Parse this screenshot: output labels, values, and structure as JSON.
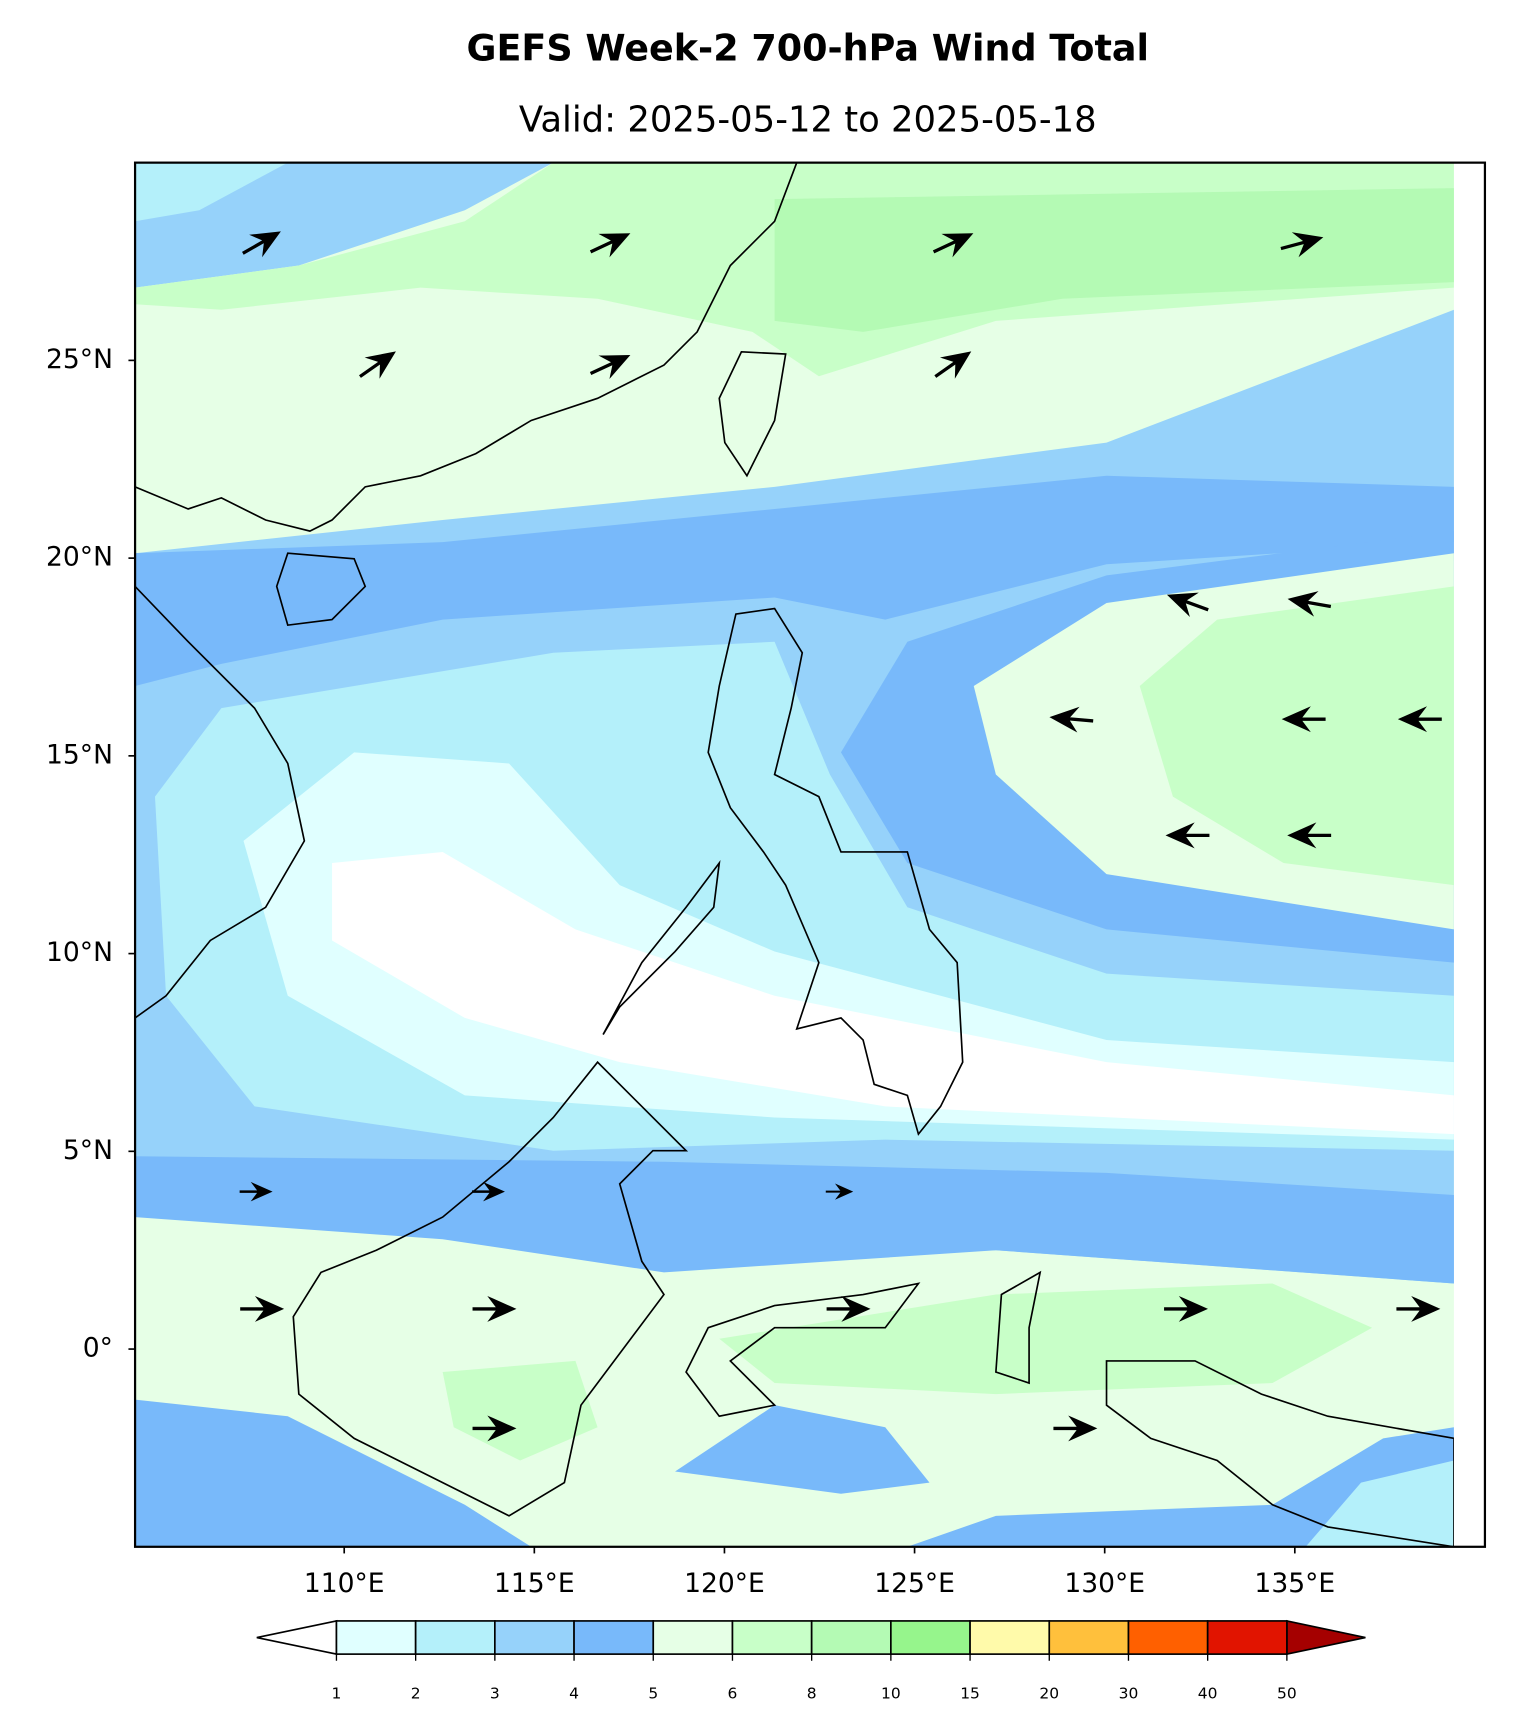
{
  "chart_data": {
    "type": "map",
    "title": "GEFS Week-2 700-hPa Wind Total",
    "subtitle": "Valid: 2025-05-12 to 2025-05-18",
    "xlim": [
      104.5,
      140
    ],
    "ylim": [
      -5,
      30
    ],
    "xticks": [
      {
        "value": 110,
        "label": "110°E"
      },
      {
        "value": 115,
        "label": "115°E"
      },
      {
        "value": 120,
        "label": "120°E"
      },
      {
        "value": 125,
        "label": "125°E"
      },
      {
        "value": 130,
        "label": "130°E"
      },
      {
        "value": 135,
        "label": "135°E"
      }
    ],
    "yticks": [
      {
        "value": 0,
        "label": "0°"
      },
      {
        "value": 5,
        "label": "5°N"
      },
      {
        "value": 10,
        "label": "10°N"
      },
      {
        "value": 15,
        "label": "15°N"
      },
      {
        "value": 20,
        "label": "20°N"
      },
      {
        "value": 25,
        "label": "25°N"
      }
    ],
    "colorbar": {
      "levels": [
        1,
        2,
        3,
        4,
        5,
        6,
        8,
        10,
        15,
        20,
        30,
        40,
        50
      ],
      "colors": [
        "#e0ffff",
        "#b4f0fa",
        "#96d2fa",
        "#78b9fa",
        "#e6ffe6",
        "#c8ffc8",
        "#b4fab4",
        "#96f58c",
        "#fffaaa",
        "#ffc03c",
        "#ff6000",
        "#e11400"
      ],
      "under_color": "#ffffff",
      "over_color": "#a50000"
    }
  }
}
